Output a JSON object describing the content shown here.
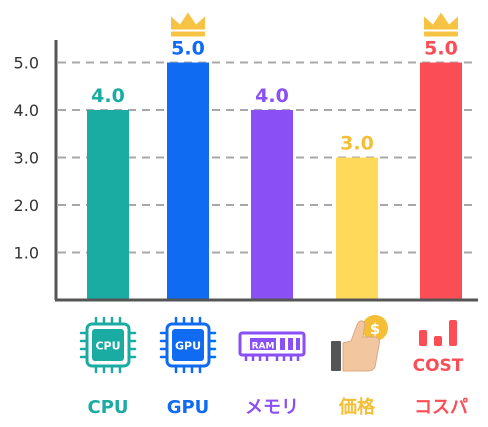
{
  "chart_data": {
    "type": "bar",
    "categories": [
      "CPU",
      "GPU",
      "メモリ",
      "価格",
      "コスパ"
    ],
    "values": [
      4.0,
      5.0,
      4.0,
      3.0,
      5.0
    ],
    "value_labels": [
      "4.0",
      "5.0",
      "4.0",
      "3.0",
      "5.0"
    ],
    "colors": [
      "#1aaba3",
      "#0e6bf2",
      "#8a4ff5",
      "#ffd95a",
      "#fb4d55"
    ],
    "label_colors": [
      "#1aaba3",
      "#0e6bf2",
      "#8a4ff5",
      "#f5bf35",
      "#fb4d55"
    ],
    "yticks": [
      "1.0",
      "2.0",
      "3.0",
      "4.0",
      "5.0"
    ],
    "ylim": [
      0,
      5.5
    ],
    "grid": true,
    "crowned": [
      false,
      true,
      false,
      false,
      true
    ],
    "icons": [
      "cpu-icon",
      "gpu-icon",
      "ram-icon",
      "price-icon",
      "cost-icon"
    ],
    "icon_texts": [
      "CPU",
      "GPU",
      "RAM",
      "$",
      "COST"
    ],
    "crown_color": "#f6c343",
    "title": "",
    "xlabel": "",
    "ylabel": ""
  }
}
